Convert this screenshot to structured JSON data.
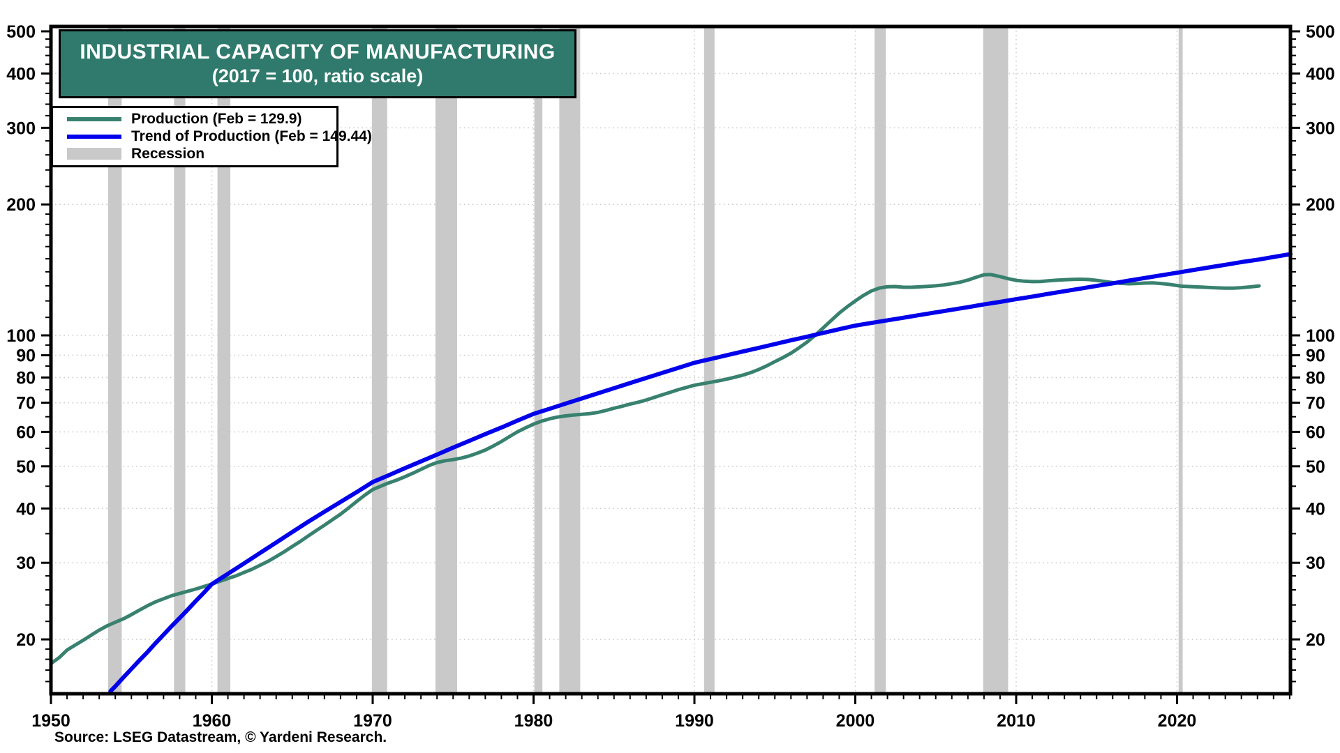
{
  "title": {
    "line1": "INDUSTRIAL CAPACITY OF MANUFACTURING",
    "line2": "(2017 = 100, ratio scale)"
  },
  "legend": {
    "items": [
      {
        "label": "Production (Feb = 129.9)",
        "swatch": "line",
        "color": "#38816f"
      },
      {
        "label": "Trend of Production (Feb = 149.44)",
        "swatch": "line",
        "color": "#0000eb"
      },
      {
        "label": "Recession",
        "swatch": "band",
        "color": "#c9c9c9"
      }
    ]
  },
  "source": "Source: LSEG Datastream, © Yardeni Research.",
  "colors": {
    "title_bg": "#2f7a6c",
    "production_line": "#38816f",
    "trend_line": "#0000eb",
    "recession_band": "#c9c9c9",
    "gridline": "#cccccc",
    "axis": "#000000"
  },
  "chart_data": {
    "type": "line",
    "title": "INDUSTRIAL CAPACITY OF MANUFACTURING (2017 = 100, ratio scale)",
    "x_axis": {
      "range": [
        1950,
        2027.05
      ],
      "major_ticks": [
        1950,
        1960,
        1970,
        1980,
        1990,
        2000,
        2010,
        2020
      ],
      "minor_tick_step_years": 1,
      "grid_at_major": true
    },
    "y_axis": {
      "scale": "log",
      "range": [
        15,
        513
      ],
      "labeled_ticks": [
        20,
        30,
        40,
        50,
        60,
        70,
        80,
        90,
        100,
        200,
        300,
        400,
        500
      ],
      "minor_ticks": [
        16,
        17,
        18,
        19,
        22,
        24,
        26,
        28,
        35,
        45,
        55,
        65,
        75,
        85,
        95,
        110,
        120,
        130,
        140,
        150,
        160,
        170,
        180,
        190,
        220,
        240,
        260,
        280,
        320,
        340,
        360,
        380,
        420,
        440,
        460,
        480
      ],
      "grid_values": [
        20,
        30,
        40,
        50,
        60,
        70,
        80,
        90,
        100,
        200,
        300,
        400
      ],
      "label_both_sides": true
    },
    "recessions": [
      [
        1953.55,
        1954.4
      ],
      [
        1957.65,
        1958.35
      ],
      [
        1960.35,
        1961.15
      ],
      [
        1969.95,
        1970.9
      ],
      [
        1973.9,
        1975.25
      ],
      [
        1980.05,
        1980.55
      ],
      [
        1981.6,
        1982.9
      ],
      [
        1990.6,
        1991.25
      ],
      [
        2001.2,
        2001.9
      ],
      [
        2007.95,
        2009.5
      ],
      [
        2020.1,
        2020.35
      ]
    ],
    "series": [
      {
        "name": "Production",
        "color": "#38816f",
        "stroke_width": 5,
        "points": [
          [
            1950.0,
            17.6
          ],
          [
            1950.5,
            18.15
          ],
          [
            1951,
            18.9
          ],
          [
            1951.5,
            19.4
          ],
          [
            1952,
            19.9
          ],
          [
            1952.5,
            20.45
          ],
          [
            1953,
            21.0
          ],
          [
            1953.5,
            21.5
          ],
          [
            1954,
            21.9
          ],
          [
            1954.5,
            22.3
          ],
          [
            1955,
            22.8
          ],
          [
            1955.5,
            23.35
          ],
          [
            1956,
            23.9
          ],
          [
            1956.5,
            24.4
          ],
          [
            1957,
            24.8
          ],
          [
            1957.5,
            25.2
          ],
          [
            1958,
            25.5
          ],
          [
            1958.5,
            25.8
          ],
          [
            1959,
            26.1
          ],
          [
            1959.5,
            26.45
          ],
          [
            1960,
            26.8
          ],
          [
            1960.5,
            27.2
          ],
          [
            1961,
            27.6
          ],
          [
            1961.5,
            28.0
          ],
          [
            1962,
            28.5
          ],
          [
            1962.5,
            29.0
          ],
          [
            1963,
            29.6
          ],
          [
            1963.5,
            30.25
          ],
          [
            1964,
            31.0
          ],
          [
            1964.5,
            31.8
          ],
          [
            1965,
            32.7
          ],
          [
            1965.5,
            33.6
          ],
          [
            1966,
            34.6
          ],
          [
            1966.5,
            35.6
          ],
          [
            1967,
            36.6
          ],
          [
            1967.5,
            37.7
          ],
          [
            1968,
            38.8
          ],
          [
            1968.5,
            40.1
          ],
          [
            1969,
            41.5
          ],
          [
            1969.5,
            42.9
          ],
          [
            1970,
            44.2
          ],
          [
            1970.5,
            45.0
          ],
          [
            1971,
            45.8
          ],
          [
            1971.5,
            46.5
          ],
          [
            1972,
            47.3
          ],
          [
            1972.5,
            48.2
          ],
          [
            1973,
            49.2
          ],
          [
            1973.5,
            50.2
          ],
          [
            1974,
            51.0
          ],
          [
            1974.5,
            51.5
          ],
          [
            1975,
            51.8
          ],
          [
            1975.5,
            52.2
          ],
          [
            1976,
            52.8
          ],
          [
            1976.5,
            53.6
          ],
          [
            1977,
            54.5
          ],
          [
            1977.5,
            55.7
          ],
          [
            1978,
            57.0
          ],
          [
            1978.5,
            58.5
          ],
          [
            1979,
            60.0
          ],
          [
            1979.5,
            61.3
          ],
          [
            1980,
            62.5
          ],
          [
            1980.5,
            63.5
          ],
          [
            1981,
            64.3
          ],
          [
            1981.5,
            64.9
          ],
          [
            1982,
            65.3
          ],
          [
            1982.5,
            65.6
          ],
          [
            1983,
            65.85
          ],
          [
            1983.5,
            66.1
          ],
          [
            1984,
            66.5
          ],
          [
            1984.5,
            67.2
          ],
          [
            1985,
            68.0
          ],
          [
            1985.5,
            68.7
          ],
          [
            1986,
            69.5
          ],
          [
            1986.5,
            70.2
          ],
          [
            1987,
            71.0
          ],
          [
            1987.5,
            72.0
          ],
          [
            1988,
            73.0
          ],
          [
            1988.5,
            74.0
          ],
          [
            1989,
            75.0
          ],
          [
            1989.5,
            75.9
          ],
          [
            1990,
            76.8
          ],
          [
            1990.5,
            77.4
          ],
          [
            1991,
            78.0
          ],
          [
            1991.5,
            78.6
          ],
          [
            1992,
            79.3
          ],
          [
            1992.5,
            80.1
          ],
          [
            1993,
            81.0
          ],
          [
            1993.5,
            82.1
          ],
          [
            1994,
            83.5
          ],
          [
            1994.5,
            85.1
          ],
          [
            1995,
            87.0
          ],
          [
            1995.5,
            88.9
          ],
          [
            1996,
            91.0
          ],
          [
            1996.5,
            93.6
          ],
          [
            1997,
            96.5
          ],
          [
            1997.5,
            100.0
          ],
          [
            1998,
            104.0
          ],
          [
            1998.5,
            108.2
          ],
          [
            1999,
            112.5
          ],
          [
            1999.5,
            116.4
          ],
          [
            2000,
            120.0
          ],
          [
            2000.5,
            123.5
          ],
          [
            2001,
            126.5
          ],
          [
            2001.5,
            128.5
          ],
          [
            2002,
            129.4
          ],
          [
            2002.5,
            129.5
          ],
          [
            2003,
            129.0
          ],
          [
            2003.5,
            129.0
          ],
          [
            2004,
            129.3
          ],
          [
            2004.5,
            129.6
          ],
          [
            2005,
            130.0
          ],
          [
            2005.5,
            130.6
          ],
          [
            2006,
            131.5
          ],
          [
            2006.5,
            132.5
          ],
          [
            2007,
            134.0
          ],
          [
            2007.5,
            136.0
          ],
          [
            2008,
            137.8
          ],
          [
            2008.4,
            138.0
          ],
          [
            2009,
            136.5
          ],
          [
            2009.5,
            135.0
          ],
          [
            2010,
            133.8
          ],
          [
            2010.5,
            133.2
          ],
          [
            2011,
            132.9
          ],
          [
            2011.5,
            133.0
          ],
          [
            2012,
            133.5
          ],
          [
            2012.5,
            133.9
          ],
          [
            2013,
            134.2
          ],
          [
            2013.5,
            134.5
          ],
          [
            2014,
            134.6
          ],
          [
            2014.5,
            134.4
          ],
          [
            2015,
            133.8
          ],
          [
            2015.5,
            133.0
          ],
          [
            2016,
            132.2
          ],
          [
            2016.5,
            131.7
          ],
          [
            2017,
            131.4
          ],
          [
            2017.5,
            131.6
          ],
          [
            2018,
            131.9
          ],
          [
            2018.5,
            132.0
          ],
          [
            2019,
            131.6
          ],
          [
            2019.5,
            131.0
          ],
          [
            2020,
            130.2
          ],
          [
            2020.3,
            129.7
          ],
          [
            2021,
            129.4
          ],
          [
            2021.5,
            129.1
          ],
          [
            2022,
            128.8
          ],
          [
            2022.5,
            128.6
          ],
          [
            2023,
            128.4
          ],
          [
            2023.5,
            128.45
          ],
          [
            2024,
            128.7
          ],
          [
            2024.5,
            129.2
          ],
          [
            2025.1,
            129.9
          ]
        ]
      },
      {
        "name": "Trend of Production",
        "color": "#0000eb",
        "stroke_width": 6,
        "points": [
          [
            1953.7,
            15.2
          ],
          [
            1954,
            15.6
          ],
          [
            1954.5,
            16.35
          ],
          [
            1955,
            17.1
          ],
          [
            1955.5,
            17.9
          ],
          [
            1956,
            18.7
          ],
          [
            1956.5,
            19.6
          ],
          [
            1957,
            20.5
          ],
          [
            1957.5,
            21.45
          ],
          [
            1958,
            22.4
          ],
          [
            1958.5,
            23.4
          ],
          [
            1959,
            24.5
          ],
          [
            1959.5,
            25.6
          ],
          [
            1960,
            26.8
          ],
          [
            1961,
            28.3
          ],
          [
            1962,
            29.9
          ],
          [
            1963,
            31.6
          ],
          [
            1964,
            33.4
          ],
          [
            1965,
            35.3
          ],
          [
            1966,
            37.3
          ],
          [
            1967,
            39.3
          ],
          [
            1968,
            41.4
          ],
          [
            1969,
            43.6
          ],
          [
            1970,
            46.0
          ],
          [
            1971,
            47.7
          ],
          [
            1972,
            49.5
          ],
          [
            1973,
            51.3
          ],
          [
            1974,
            53.2
          ],
          [
            1975,
            55.2
          ],
          [
            1976,
            57.2
          ],
          [
            1977,
            59.3
          ],
          [
            1978,
            61.4
          ],
          [
            1979,
            63.7
          ],
          [
            1980,
            66.0
          ],
          [
            1981,
            67.8
          ],
          [
            1982,
            69.7
          ],
          [
            1983,
            71.6
          ],
          [
            1984,
            73.6
          ],
          [
            1985,
            75.6
          ],
          [
            1986,
            77.7
          ],
          [
            1987,
            79.8
          ],
          [
            1988,
            82.0
          ],
          [
            1989,
            84.2
          ],
          [
            1990,
            86.5
          ],
          [
            1991,
            88.2
          ],
          [
            1992,
            90.0
          ],
          [
            1993,
            91.8
          ],
          [
            1994,
            93.6
          ],
          [
            1995,
            95.5
          ],
          [
            1996,
            97.4
          ],
          [
            1997,
            99.3
          ],
          [
            1998,
            101.3
          ],
          [
            1999,
            103.3
          ],
          [
            2000,
            105.3
          ],
          [
            2001,
            106.8
          ],
          [
            2002,
            108.3
          ],
          [
            2003,
            109.8
          ],
          [
            2004,
            111.4
          ],
          [
            2005,
            112.9
          ],
          [
            2006,
            114.5
          ],
          [
            2007,
            116.1
          ],
          [
            2008,
            117.8
          ],
          [
            2009,
            119.4
          ],
          [
            2010,
            121.1
          ],
          [
            2011,
            122.8
          ],
          [
            2012,
            124.6
          ],
          [
            2013,
            126.3
          ],
          [
            2014,
            128.1
          ],
          [
            2015,
            129.9
          ],
          [
            2016,
            131.7
          ],
          [
            2017,
            133.6
          ],
          [
            2018,
            135.5
          ],
          [
            2019,
            137.4
          ],
          [
            2020,
            139.3
          ],
          [
            2021,
            141.3
          ],
          [
            2022,
            143.3
          ],
          [
            2023,
            145.3
          ],
          [
            2024,
            147.4
          ],
          [
            2025.1,
            149.44
          ],
          [
            2026,
            151.4
          ],
          [
            2027.05,
            153.7
          ]
        ]
      }
    ]
  }
}
